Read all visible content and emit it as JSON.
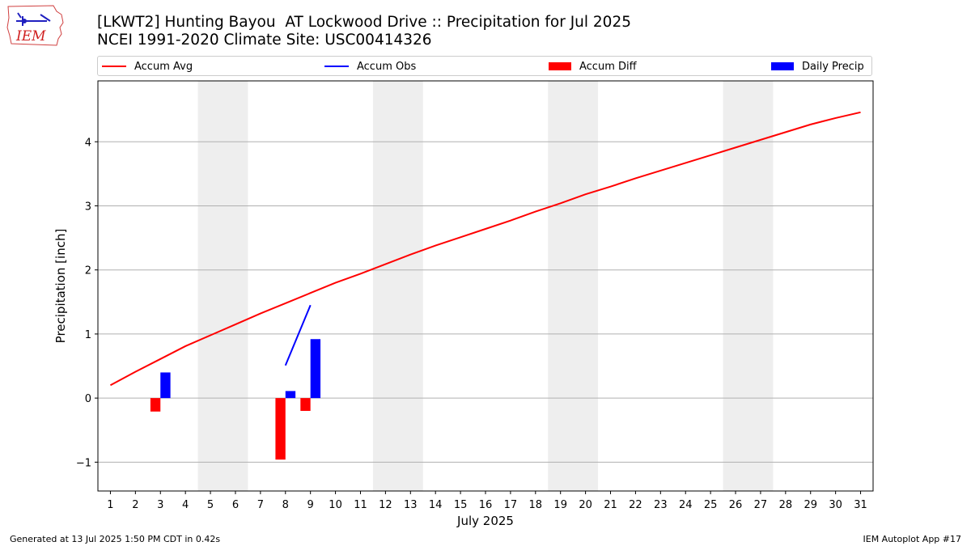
{
  "header": {
    "title_line1": "[LKWT2] Hunting Bayou  AT Lockwood Drive :: Precipitation for Jul 2025",
    "title_line2": "NCEI 1991-2020 Climate Site: USC00414326"
  },
  "logo": {
    "text": "IEM",
    "icon": "iem-iowa-logo-icon"
  },
  "footer": {
    "left": "Generated at 13 Jul 2025 1:50 PM CDT in 0.42s",
    "right": "IEM Autoplot App #17"
  },
  "chart_data": {
    "type": "line",
    "xlabel": "July 2025",
    "ylabel": "Precipitation [inch]",
    "xlim": [
      0.5,
      31.5
    ],
    "ylim": [
      -1.45,
      4.95
    ],
    "yticks": [
      -1,
      0,
      1,
      2,
      3,
      4
    ],
    "ytick_labels": [
      "−1",
      "0",
      "1",
      "2",
      "3",
      "4"
    ],
    "xticks": [
      1,
      2,
      3,
      4,
      5,
      6,
      7,
      8,
      9,
      10,
      11,
      12,
      13,
      14,
      15,
      16,
      17,
      18,
      19,
      20,
      21,
      22,
      23,
      24,
      25,
      26,
      27,
      28,
      29,
      30,
      31
    ],
    "xtick_labels": [
      "1",
      "2",
      "3",
      "4",
      "5",
      "6",
      "7",
      "8",
      "9",
      "10",
      "11",
      "12",
      "13",
      "14",
      "15",
      "16",
      "17",
      "18",
      "19",
      "20",
      "21",
      "22",
      "23",
      "24",
      "25",
      "26",
      "27",
      "28",
      "29",
      "30",
      "31"
    ],
    "grid": "horizontal",
    "weekend_bands": [
      [
        4.5,
        6.5
      ],
      [
        11.5,
        13.5
      ],
      [
        18.5,
        20.5
      ],
      [
        25.5,
        27.5
      ]
    ],
    "legend_position": "top, above plot",
    "series": [
      {
        "name": "Accum Avg",
        "kind": "line",
        "color": "#ff0000",
        "x": [
          1,
          2,
          3,
          4,
          5,
          6,
          7,
          8,
          9,
          10,
          11,
          12,
          13,
          14,
          15,
          16,
          17,
          18,
          19,
          20,
          21,
          22,
          23,
          24,
          25,
          26,
          27,
          28,
          29,
          30,
          31
        ],
        "values": [
          0.2,
          0.41,
          0.61,
          0.81,
          0.98,
          1.15,
          1.32,
          1.48,
          1.64,
          1.8,
          1.94,
          2.09,
          2.24,
          2.38,
          2.51,
          2.64,
          2.77,
          2.91,
          3.04,
          3.18,
          3.3,
          3.43,
          3.55,
          3.67,
          3.79,
          3.91,
          4.03,
          4.15,
          4.27,
          4.37,
          4.46
        ]
      },
      {
        "name": "Accum Obs",
        "kind": "line",
        "color": "#0000ff",
        "x": [
          8,
          9
        ],
        "values": [
          0.51,
          1.45
        ]
      },
      {
        "name": "Accum Diff",
        "kind": "bar",
        "color": "#ff0000",
        "x": [
          3,
          8,
          9
        ],
        "values": [
          -0.21,
          -0.96,
          -0.2
        ]
      },
      {
        "name": "Daily Precip",
        "kind": "bar",
        "color": "#0000ff",
        "x": [
          3,
          8,
          9
        ],
        "values": [
          0.4,
          0.11,
          0.92
        ]
      }
    ]
  }
}
